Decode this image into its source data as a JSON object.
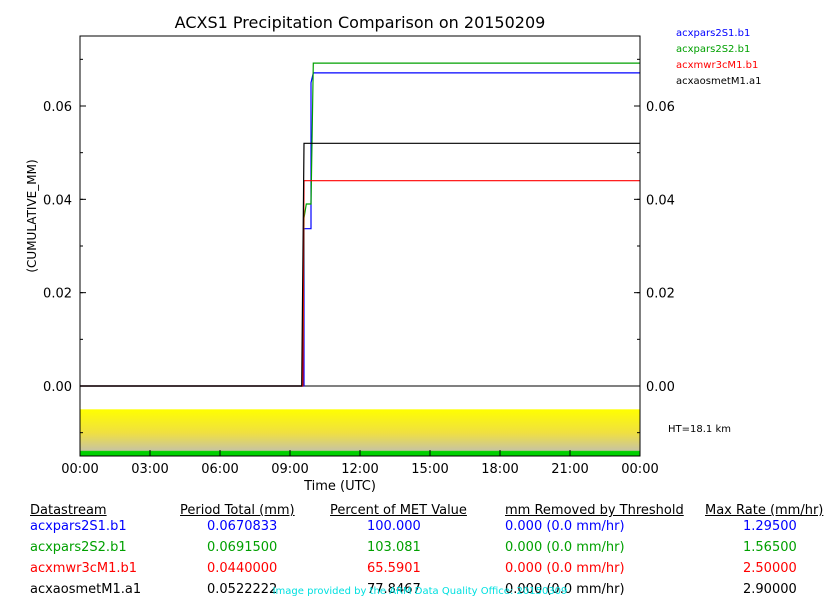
{
  "chart_data": {
    "type": "line",
    "title": "ACXS1 Precipitation Comparison on 20150209",
    "ylabel": "(CUMULATIVE_MM)",
    "xlabel": "Time (UTC)",
    "x_ticks": [
      "00:00",
      "03:00",
      "06:00",
      "09:00",
      "12:00",
      "15:00",
      "18:00",
      "21:00",
      "00:00"
    ],
    "y_ticks": [
      "0.00",
      "0.02",
      "0.04",
      "0.06"
    ],
    "xlim_hours": [
      0,
      24
    ],
    "ylim": [
      -0.015,
      0.075
    ],
    "annotation": "HT=18.1 km",
    "series": [
      {
        "name": "acxpars2S1.b1",
        "color": "#0000ff",
        "points": [
          [
            0,
            0
          ],
          [
            9.6,
            0
          ],
          [
            9.6,
            0.0337
          ],
          [
            9.9,
            0.0337
          ],
          [
            9.9,
            0.065
          ],
          [
            10.0,
            0.0671
          ],
          [
            24,
            0.0671
          ]
        ]
      },
      {
        "name": "acxpars2S2.b1",
        "color": "#00a000",
        "points": [
          [
            0,
            0
          ],
          [
            9.55,
            0
          ],
          [
            9.6,
            0.036
          ],
          [
            9.7,
            0.039
          ],
          [
            9.9,
            0.039
          ],
          [
            10.0,
            0.0692
          ],
          [
            24,
            0.0692
          ]
        ]
      },
      {
        "name": "acxmwr3cM1.b1",
        "color": "#ff0000",
        "points": [
          [
            0,
            0
          ],
          [
            9.55,
            0
          ],
          [
            9.6,
            0.044
          ],
          [
            24,
            0.044
          ]
        ]
      },
      {
        "name": "acxaosmetM1.a1",
        "color": "#000000",
        "points": [
          [
            0,
            0
          ],
          [
            9.5,
            0
          ],
          [
            9.6,
            0.052
          ],
          [
            24,
            0.052
          ]
        ]
      }
    ]
  },
  "table": {
    "headers": [
      "Datastream",
      "Period Total (mm)",
      "Percent of MET Value",
      "mm Removed by Threshold",
      "Max Rate (mm/hr)"
    ],
    "rows": [
      {
        "color": "#0000ff",
        "cells": [
          "acxpars2S1.b1",
          "0.0670833",
          "100.000",
          "0.000 (0.0 mm/hr)",
          "1.29500"
        ]
      },
      {
        "color": "#00a000",
        "cells": [
          "acxpars2S2.b1",
          "0.0691500",
          "103.081",
          "0.000 (0.0 mm/hr)",
          "1.56500"
        ]
      },
      {
        "color": "#ff0000",
        "cells": [
          "acxmwr3cM1.b1",
          "0.0440000",
          "65.5901",
          "0.000 (0.0 mm/hr)",
          "2.50000"
        ]
      },
      {
        "color": "#000000",
        "cells": [
          "acxaosmetM1.a1",
          "0.0522222",
          "77.8467",
          "0.000 (0.0 mm/hr)",
          "2.90000"
        ]
      }
    ]
  },
  "footer": "Image provided by the ARM Data Quality Office: 20150309"
}
